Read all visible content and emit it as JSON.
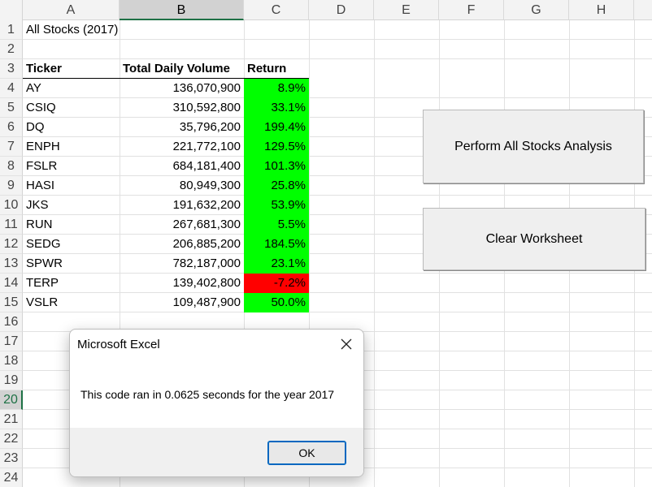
{
  "columns": [
    "A",
    "B",
    "C",
    "D",
    "E",
    "F",
    "G",
    "H"
  ],
  "rows": [
    "1",
    "2",
    "3",
    "4",
    "5",
    "6",
    "7",
    "8",
    "9",
    "10",
    "11",
    "12",
    "13",
    "14",
    "15",
    "16",
    "17",
    "18",
    "19",
    "20",
    "21",
    "22",
    "23",
    "24"
  ],
  "sheet": {
    "title": "All Stocks (2017)",
    "headers": {
      "ticker": "Ticker",
      "volume": "Total Daily Volume",
      "return": "Return"
    },
    "data": [
      {
        "ticker": "AY",
        "volume": "136,070,900",
        "ret": "8.9%"
      },
      {
        "ticker": "CSIQ",
        "volume": "310,592,800",
        "ret": "33.1%"
      },
      {
        "ticker": "DQ",
        "volume": "35,796,200",
        "ret": "199.4%"
      },
      {
        "ticker": "ENPH",
        "volume": "221,772,100",
        "ret": "129.5%"
      },
      {
        "ticker": "FSLR",
        "volume": "684,181,400",
        "ret": "101.3%"
      },
      {
        "ticker": "HASI",
        "volume": "80,949,300",
        "ret": "25.8%"
      },
      {
        "ticker": "JKS",
        "volume": "191,632,200",
        "ret": "53.9%"
      },
      {
        "ticker": "RUN",
        "volume": "267,681,300",
        "ret": "5.5%"
      },
      {
        "ticker": "SEDG",
        "volume": "206,885,200",
        "ret": "184.5%"
      },
      {
        "ticker": "SPWR",
        "volume": "782,187,000",
        "ret": "23.1%"
      },
      {
        "ticker": "TERP",
        "volume": "139,402,800",
        "ret": "-7.2%"
      },
      {
        "ticker": "VSLR",
        "volume": "109,487,900",
        "ret": "50.0%"
      }
    ]
  },
  "colors": {
    "positive": "#00ff00",
    "negative": "#ff0000",
    "selection": "#1e7145"
  },
  "selected_column": "B",
  "selected_row": "20",
  "buttons": {
    "analysis_label": "Perform All Stocks Analysis",
    "clear_label": "Clear Worksheet"
  },
  "dialog": {
    "title": "Microsoft Excel",
    "message": "This code ran in 0.0625 seconds for the year 2017",
    "ok_label": "OK",
    "close_icon": "close-icon"
  }
}
